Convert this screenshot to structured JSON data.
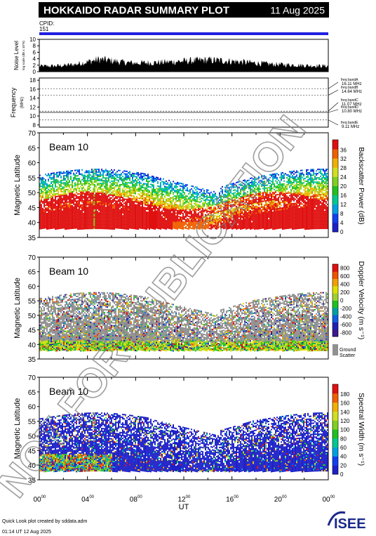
{
  "header": {
    "title": "HOKKAIDO RADAR SUMMARY PLOT",
    "date": "11 Aug 2025"
  },
  "cpid": {
    "label": "CPID:",
    "value": "151"
  },
  "noise_panel": {
    "ylabel_main": "Noise Level",
    "ylabel_unit": "log scale (dB x 10^6)",
    "ticks": [
      "0",
      "2",
      "4",
      "6",
      "8",
      "10"
    ]
  },
  "freq_panel": {
    "ylabel_main": "Frequency",
    "ylabel_unit": "(MHz)",
    "ticks": [
      "8",
      "10",
      "12",
      "14",
      "16",
      "18"
    ],
    "bands": [
      {
        "label": "freq bandA",
        "value": "16.11 MHz"
      },
      {
        "label": "freq bandB",
        "value": "14.64 MHz"
      },
      {
        "label": "freq bandC",
        "value": "11.07 MHz"
      },
      {
        "label": "freq bandD",
        "value": "10.80 MHz"
      },
      {
        "label": "freq bandE",
        "value": "9.11 MHz"
      }
    ]
  },
  "panels": [
    {
      "beam": "Beam 10",
      "ylabel": "Magnetic Latitude",
      "cbar_label": "Backscatter Power (dB)",
      "cbar_ticks": [
        "0",
        "4",
        "8",
        "12",
        "16",
        "20",
        "24",
        "28",
        "32",
        "36"
      ]
    },
    {
      "beam": "Beam 10",
      "ylabel": "Magnetic Latitude",
      "cbar_label": "Doppler Velocity (m s⁻¹)",
      "cbar_ticks": [
        "800",
        "600",
        "400",
        "200",
        "0",
        "-200",
        "-400",
        "-600",
        "-800"
      ],
      "ground_scatter": [
        "Ground",
        "Scatter"
      ]
    },
    {
      "beam": "Beam 10",
      "ylabel": "Magnetic Latitude",
      "cbar_label": "Spectral Width (m s⁻¹)",
      "cbar_ticks": [
        "0",
        "20",
        "40",
        "60",
        "80",
        "100",
        "120",
        "140",
        "160",
        "180"
      ]
    }
  ],
  "lat_ticks": [
    "35",
    "40",
    "45",
    "50",
    "55",
    "60",
    "65",
    "70"
  ],
  "x_axis": {
    "label": "UT",
    "ticks": [
      "00",
      "04",
      "08",
      "12",
      "16",
      "20",
      "00"
    ],
    "sup": "00"
  },
  "footer": {
    "line1": "Quick Look plot created by sddata.adm",
    "line2": "01:14 UT 12 Aug 2025"
  },
  "logo": {
    "text": "ISEE"
  },
  "watermark": "NOT FOR PUBLICATION",
  "colors": {
    "cpid_bar": "#2020e0",
    "ground_scatter": "#909090",
    "watermark": "#7f7f7f"
  },
  "chart_data": [
    {
      "type": "area",
      "title": "Noise Level",
      "x_range_ut_hours": [
        0,
        24
      ],
      "ylim": [
        0,
        10
      ],
      "x": [
        0,
        1,
        2,
        3,
        4,
        5,
        6,
        7,
        8,
        9,
        10,
        11,
        12,
        13,
        14,
        15,
        16,
        17,
        18,
        19,
        20,
        21,
        22,
        23,
        24
      ],
      "values": [
        1.8,
        1.8,
        2.0,
        2.4,
        3.2,
        4.0,
        3.6,
        3.0,
        2.8,
        2.9,
        3.0,
        3.2,
        3.4,
        3.6,
        3.8,
        3.6,
        3.4,
        3.1,
        2.8,
        2.5,
        2.3,
        2.2,
        2.0,
        1.9,
        1.8
      ]
    },
    {
      "type": "line",
      "title": "Frequency",
      "ylim": [
        7.5,
        18.5
      ],
      "x_range_ut_hours": [
        0,
        24
      ],
      "series": [
        {
          "name": "freq bandA",
          "value": 16.11
        },
        {
          "name": "freq bandB",
          "value": 14.64
        },
        {
          "name": "freq bandC",
          "value": 11.07
        },
        {
          "name": "freq bandD",
          "value": 10.8
        },
        {
          "name": "freq bandE",
          "value": 9.11
        }
      ]
    },
    {
      "type": "heatmap",
      "title": "Backscatter Power (dB)",
      "ylim": [
        35,
        70
      ],
      "x_range_ut_hours": [
        0,
        24
      ],
      "clim": [
        0,
        36
      ]
    },
    {
      "type": "heatmap",
      "title": "Doppler Velocity (m s⁻¹)",
      "ylim": [
        35,
        70
      ],
      "x_range_ut_hours": [
        0,
        24
      ],
      "clim": [
        -800,
        800
      ]
    },
    {
      "type": "heatmap",
      "title": "Spectral Width (m s⁻¹)",
      "ylim": [
        35,
        70
      ],
      "x_range_ut_hours": [
        0,
        24
      ],
      "clim": [
        0,
        180
      ]
    }
  ]
}
